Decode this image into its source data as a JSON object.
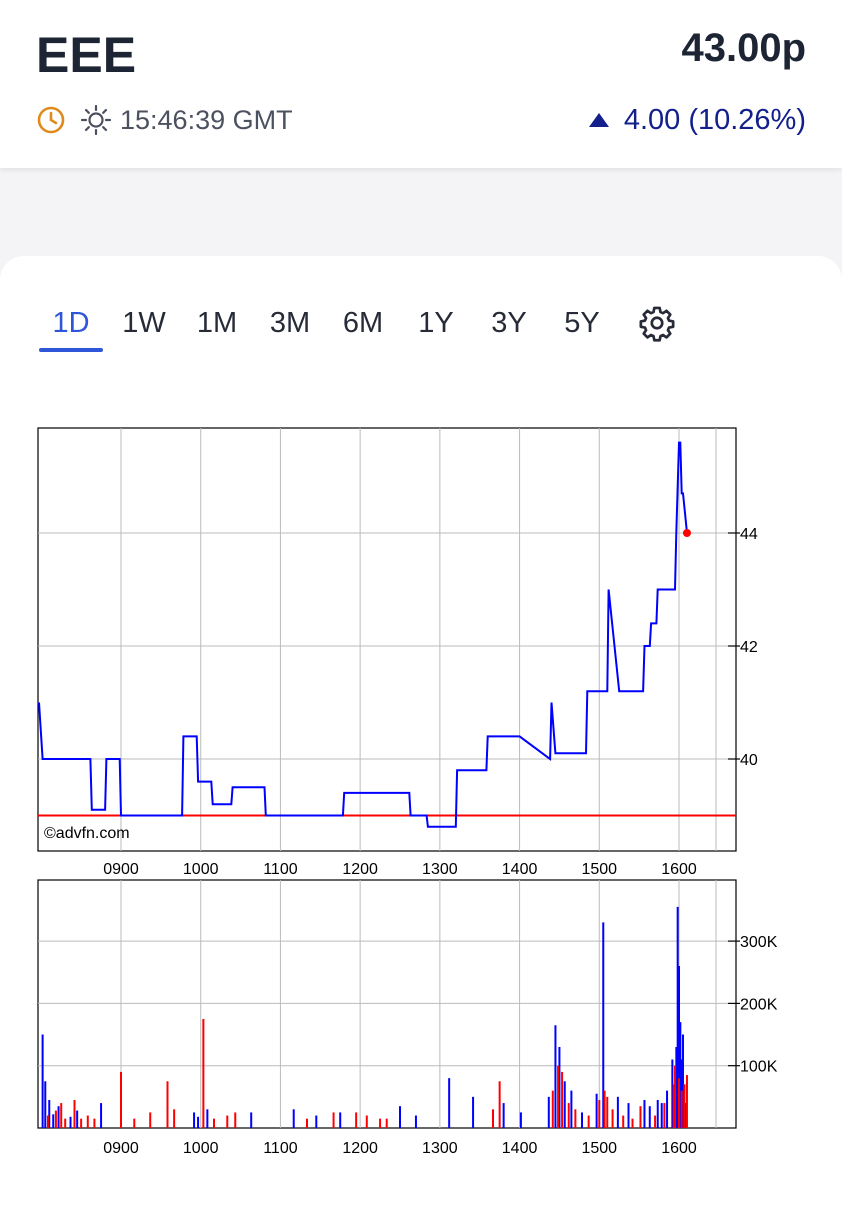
{
  "header": {
    "ticker": "EEE",
    "price": "43.00p",
    "time": "15:46:39 GMT",
    "change": "4.00 (10.26%)",
    "change_direction": "up",
    "change_color": "#13208c"
  },
  "tabs": [
    {
      "label": "1D",
      "active": true
    },
    {
      "label": "1W",
      "active": false
    },
    {
      "label": "1M",
      "active": false
    },
    {
      "label": "3M",
      "active": false
    },
    {
      "label": "6M",
      "active": false
    },
    {
      "label": "1Y",
      "active": false
    },
    {
      "label": "3Y",
      "active": false
    },
    {
      "label": "5Y",
      "active": false
    }
  ],
  "icons": [
    "clock-icon",
    "sun-icon",
    "up-triangle-icon",
    "gear-icon"
  ],
  "chart_data": [
    {
      "type": "line",
      "watermark": "©advfn.com",
      "x_ticks": [
        "0900",
        "1000",
        "1100",
        "1200",
        "1300",
        "1400",
        "1500",
        "1600"
      ],
      "y_ticks": [
        "40",
        "42",
        "44"
      ],
      "ylim": [
        38.7,
        45.8
      ],
      "xlim": [
        "08:00",
        "16:30"
      ],
      "grid": true,
      "line_color": "#0000ff",
      "reference_line": {
        "value": 39,
        "color": "#ff0000"
      },
      "last_point_color": "#ff0000",
      "series": [
        {
          "x": [
            "08:00",
            "08:01",
            "08:37",
            "08:38",
            "08:48",
            "08:49",
            "08:59",
            "09:00",
            "09:46",
            "09:47",
            "09:57",
            "09:58",
            "10:08",
            "10:09",
            "10:23",
            "10:24",
            "10:48",
            "10:49",
            "11:00",
            "11:01",
            "11:47",
            "11:48",
            "12:37",
            "12:38",
            "12:50",
            "12:51",
            "13:12",
            "13:13",
            "13:35",
            "13:36",
            "13:59",
            "14:00",
            "14:23",
            "14:24",
            "14:27",
            "14:28",
            "14:50",
            "14:51",
            "15:06",
            "15:07",
            "15:15",
            "15:16",
            "15:33",
            "15:34",
            "15:38",
            "15:39",
            "15:43",
            "15:44",
            "15:57",
            "15:58",
            "16:00",
            "16:01",
            "16:02",
            "16:03",
            "16:06"
          ],
          "y": [
            41.0,
            40.0,
            40.0,
            39.1,
            39.1,
            40.0,
            40.0,
            39.0,
            39.0,
            40.4,
            40.4,
            39.6,
            39.6,
            39.2,
            39.2,
            39.5,
            39.5,
            39.0,
            39.0,
            39.0,
            39.0,
            39.4,
            39.4,
            39.0,
            39.0,
            38.8,
            38.8,
            39.8,
            39.8,
            40.4,
            40.4,
            40.4,
            40.0,
            41.0,
            40.1,
            40.1,
            40.1,
            41.2,
            41.2,
            43.0,
            41.2,
            41.2,
            41.2,
            42.0,
            42.0,
            42.4,
            42.4,
            43.0,
            43.0,
            44.0,
            45.6,
            45.6,
            44.7,
            44.7,
            44.0
          ]
        }
      ]
    },
    {
      "type": "bar",
      "x_ticks": [
        "0900",
        "1000",
        "1100",
        "1200",
        "1300",
        "1400",
        "1500",
        "1600"
      ],
      "y_ticks": [
        "100K",
        "200K",
        "300K"
      ],
      "ylim": [
        0,
        350000
      ],
      "grid": true,
      "series": [
        {
          "name": "buy",
          "color": "#0000ff",
          "x": [
            "08:01",
            "08:03",
            "08:06",
            "08:09",
            "08:13",
            "08:22",
            "08:27",
            "08:45",
            "09:55",
            "09:58",
            "10:05",
            "10:38",
            "11:10",
            "11:27",
            "11:45",
            "12:30",
            "12:42",
            "13:07",
            "13:25",
            "13:48",
            "14:01",
            "14:22",
            "14:27",
            "14:30",
            "14:34",
            "14:39",
            "14:47",
            "14:58",
            "15:03",
            "15:14",
            "15:22",
            "15:34",
            "15:38",
            "15:44",
            "15:47",
            "15:51",
            "15:55",
            "15:58",
            "15:59",
            "16:00",
            "16:01",
            "16:02",
            "16:03",
            "16:04",
            "16:05"
          ],
          "y": [
            150000,
            75000,
            45000,
            22000,
            35000,
            18000,
            28000,
            40000,
            25000,
            18000,
            30000,
            25000,
            30000,
            20000,
            25000,
            35000,
            20000,
            80000,
            50000,
            40000,
            25000,
            50000,
            165000,
            130000,
            75000,
            60000,
            25000,
            55000,
            330000,
            50000,
            40000,
            45000,
            35000,
            45000,
            40000,
            60000,
            110000,
            130000,
            355000,
            260000,
            170000,
            110000,
            150000,
            70000,
            40000
          ]
        },
        {
          "name": "sell",
          "color": "#ff0000",
          "x": [
            "08:05",
            "08:11",
            "08:15",
            "08:18",
            "08:25",
            "08:30",
            "08:35",
            "08:40",
            "09:00",
            "09:10",
            "09:22",
            "09:35",
            "09:40",
            "10:02",
            "10:10",
            "10:20",
            "10:26",
            "11:20",
            "11:40",
            "11:57",
            "12:05",
            "12:15",
            "12:20",
            "13:40",
            "13:45",
            "14:25",
            "14:29",
            "14:32",
            "14:37",
            "14:42",
            "14:52",
            "15:00",
            "15:04",
            "15:06",
            "15:10",
            "15:18",
            "15:25",
            "15:31",
            "15:42",
            "15:49",
            "15:56",
            "15:57",
            "16:00",
            "16:02",
            "16:04",
            "16:06"
          ],
          "y": [
            20000,
            28000,
            40000,
            15000,
            45000,
            15000,
            20000,
            15000,
            90000,
            15000,
            25000,
            75000,
            30000,
            175000,
            15000,
            20000,
            25000,
            15000,
            25000,
            25000,
            20000,
            15000,
            15000,
            30000,
            75000,
            60000,
            100000,
            90000,
            40000,
            30000,
            20000,
            45000,
            60000,
            50000,
            30000,
            20000,
            15000,
            35000,
            20000,
            40000,
            70000,
            100000,
            80000,
            60000,
            70000,
            85000
          ]
        }
      ]
    }
  ]
}
